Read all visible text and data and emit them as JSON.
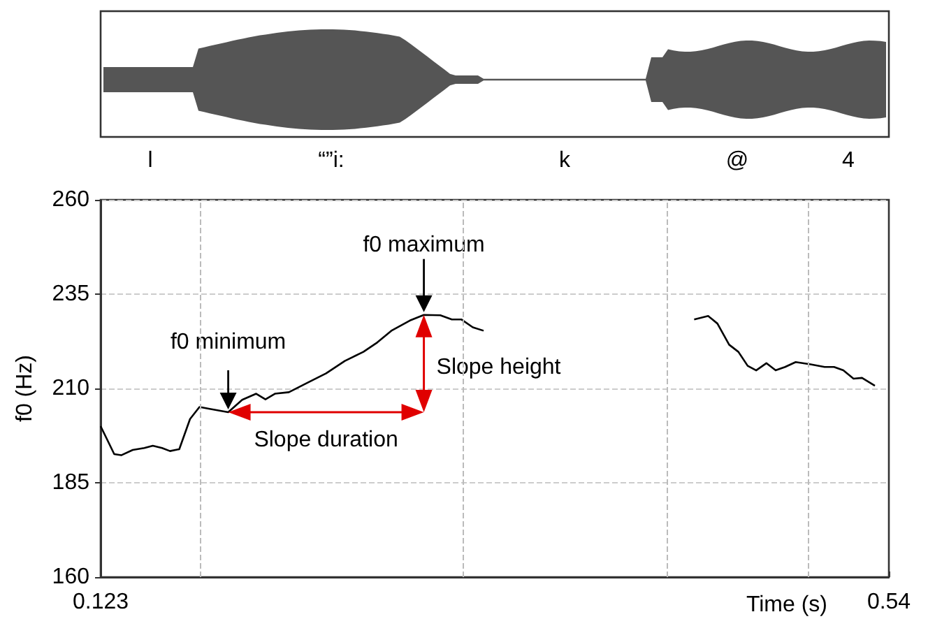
{
  "chart_data": {
    "type": "line",
    "xlabel": "Time (s)",
    "ylabel": "f0 (Hz)",
    "xlim": [
      0.123,
      0.54
    ],
    "xticks": [
      0.123,
      0.54
    ],
    "ylim": [
      160,
      260
    ],
    "yticks": [
      160,
      185,
      210,
      235,
      260
    ],
    "grid": "y",
    "marker": "none",
    "line_style": "solid",
    "series": [
      {
        "color": "#000000",
        "x": [
          0.123,
          0.1302,
          0.1339,
          0.14,
          0.1461,
          0.1506,
          0.1555,
          0.1597,
          0.1646,
          0.1703,
          0.1753,
          0.1807,
          0.1905,
          0.1979,
          0.2053,
          0.2102,
          0.2152,
          0.2226,
          0.2324,
          0.2423,
          0.2522,
          0.262,
          0.2694,
          0.2768,
          0.2866,
          0.294,
          0.3027,
          0.3088,
          0.3138,
          0.3199,
          0.3256,
          0.38,
          0.437,
          0.4444,
          0.4493,
          0.4555,
          0.4604,
          0.4653,
          0.4698,
          0.4752,
          0.4801,
          0.4851,
          0.4907,
          0.4986,
          0.506,
          0.511,
          0.5159,
          0.5213,
          0.5258,
          0.5326
        ],
        "values": [
          200.0,
          192.6,
          192.3,
          193.7,
          194.2,
          194.8,
          194.2,
          193.4,
          193.9,
          201.9,
          205.1,
          204.6,
          203.7,
          207.0,
          208.6,
          207.1,
          208.6,
          209.0,
          211.5,
          214.0,
          217.3,
          219.7,
          222.2,
          225.3,
          228.0,
          229.5,
          229.4,
          228.3,
          228.3,
          226.2,
          225.3,
          null,
          228.3,
          229.2,
          227.2,
          221.6,
          219.7,
          216.0,
          214.8,
          216.7,
          214.8,
          215.7,
          217.0,
          216.4,
          215.7,
          215.7,
          214.8,
          212.6,
          212.8,
          210.7
        ]
      }
    ],
    "ref_lines": [
      {
        "axis": "x",
        "value": 0.1755,
        "color": "#bbbbbb",
        "line_style": "dashed"
      },
      {
        "axis": "x",
        "value": 0.3145,
        "color": "#bbbbbb",
        "line_style": "dashed"
      },
      {
        "axis": "x",
        "value": 0.4224,
        "color": "#bbbbbb",
        "line_style": "dashed"
      },
      {
        "axis": "x",
        "value": 0.4971,
        "color": "#bbbbbb",
        "line_style": "dashed"
      }
    ],
    "annotations": [
      {
        "text": "f0 minimum",
        "x": 0.1905,
        "y": 203.7
      },
      {
        "text": "f0 maximum",
        "x": 0.294,
        "y": 229.5
      },
      "Slope duration",
      "Slope height",
      "l",
      "“”i:",
      "k",
      "@",
      "4"
    ]
  }
}
